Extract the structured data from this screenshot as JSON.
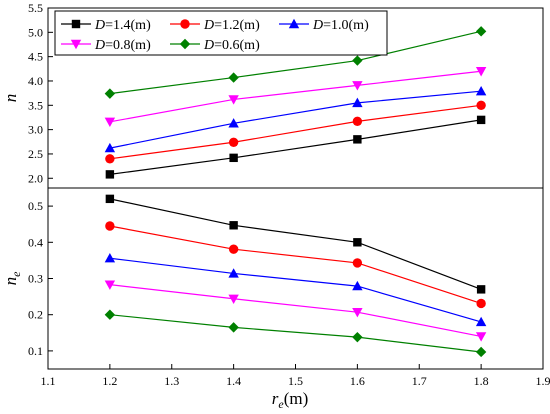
{
  "chart_data": {
    "type": "line",
    "x": [
      1.2,
      1.4,
      1.6,
      1.8
    ],
    "xlim": [
      1.1,
      1.9
    ],
    "xticks": [
      "1.1",
      "1.2",
      "1.3",
      "1.4",
      "1.5",
      "1.6",
      "1.7",
      "1.8",
      "1.9"
    ],
    "xlabel": {
      "main": "r",
      "sub": "e",
      "unit": "(m)"
    },
    "legend_position": "top-left",
    "grid": false,
    "panels": [
      {
        "ylabel": {
          "main": "n",
          "sub": ""
        },
        "ylim": [
          1.8,
          5.5
        ],
        "yticks": [
          "2.0",
          "2.5",
          "3.0",
          "3.5",
          "4.0",
          "4.5",
          "5.0",
          "5.5"
        ],
        "series": [
          {
            "name": "D=1.4(m)",
            "color": "#000000",
            "marker": "square",
            "values": [
              2.08,
              2.42,
              2.8,
              3.2
            ]
          },
          {
            "name": "D=1.2(m)",
            "color": "#ff0000",
            "marker": "circle",
            "values": [
              2.4,
              2.74,
              3.17,
              3.5
            ]
          },
          {
            "name": "D=1.0(m)",
            "color": "#0000ff",
            "marker": "triangle-up",
            "values": [
              2.62,
              3.13,
              3.55,
              3.79
            ]
          },
          {
            "name": "D=0.8(m)",
            "color": "#ff00ff",
            "marker": "triangle-down",
            "values": [
              3.16,
              3.62,
              3.91,
              4.2
            ]
          },
          {
            "name": "D=0.6(m)",
            "color": "#008000",
            "marker": "diamond",
            "values": [
              3.74,
              4.07,
              4.42,
              5.02
            ]
          }
        ]
      },
      {
        "ylabel": {
          "main": "n",
          "sub": "e"
        },
        "ylim": [
          0.05,
          0.55
        ],
        "yticks": [
          "0.1",
          "0.2",
          "0.3",
          "0.4",
          "0.5"
        ],
        "series": [
          {
            "name": "D=1.4(m)",
            "color": "#000000",
            "marker": "square",
            "values": [
              0.52,
              0.447,
              0.4,
              0.27
            ]
          },
          {
            "name": "D=1.2(m)",
            "color": "#ff0000",
            "marker": "circle",
            "values": [
              0.445,
              0.381,
              0.343,
              0.231
            ]
          },
          {
            "name": "D=1.0(m)",
            "color": "#0000ff",
            "marker": "triangle-up",
            "values": [
              0.356,
              0.314,
              0.279,
              0.18
            ]
          },
          {
            "name": "D=0.8(m)",
            "color": "#ff00ff",
            "marker": "triangle-down",
            "values": [
              0.283,
              0.244,
              0.207,
              0.14
            ]
          },
          {
            "name": "D=0.6(m)",
            "color": "#008000",
            "marker": "diamond",
            "values": [
              0.2,
              0.165,
              0.138,
              0.097
            ]
          }
        ]
      }
    ]
  }
}
